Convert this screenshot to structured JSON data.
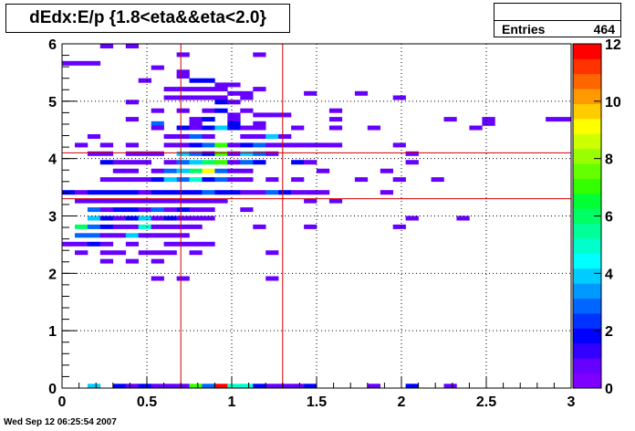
{
  "title": "dEdx:E/p {1.8<eta&&eta<2.0}",
  "stats": {
    "label": "Entries",
    "value": "464"
  },
  "footer": {
    "date": "Wed Sep 12 06:25:54 2007"
  },
  "colors": {
    "background": "#ffffff",
    "grid": "#000000",
    "cut_lines": "#d40000"
  },
  "chart_data": {
    "type": "heatmap",
    "title": "dEdx:E/p {1.8<eta&&eta<2.0}",
    "xlabel": "",
    "ylabel": "",
    "xlim": [
      0,
      3
    ],
    "ylim": [
      0,
      6
    ],
    "x_ticks": [
      "0",
      "0.5",
      "1",
      "1.5",
      "2",
      "2.5",
      "3"
    ],
    "y_ticks": [
      "0",
      "1",
      "2",
      "3",
      "4",
      "5",
      "6"
    ],
    "grid": true,
    "colorbar": {
      "range": [
        0,
        12
      ],
      "ticks": [
        "0",
        "2",
        "4",
        "6",
        "8",
        "10",
        "12"
      ],
      "colors": [
        "#7f00ff",
        "#6600ff",
        "#3300ff",
        "#0000ff",
        "#0033ff",
        "#0066ff",
        "#0099ff",
        "#00ccff",
        "#00ffff",
        "#00ffcc",
        "#00ff99",
        "#00ff66",
        "#00ff33",
        "#33ff00",
        "#66ff00",
        "#99ff00",
        "#ccff00",
        "#ffff00",
        "#ffcc00",
        "#ff9900",
        "#ff6600",
        "#ff3300",
        "#ff0000"
      ]
    },
    "bin_width": {
      "x": 0.075,
      "y": 0.075
    },
    "cut_lines": {
      "x": [
        0.7,
        1.3
      ],
      "y": [
        3.3,
        4.1
      ]
    },
    "cells": [
      [
        0.225,
        5.925,
        1
      ],
      [
        0.375,
        5.925,
        1
      ],
      [
        0.675,
        5.775,
        1
      ],
      [
        1.125,
        5.775,
        1
      ],
      [
        0.0,
        5.625,
        1
      ],
      [
        0.075,
        5.625,
        1
      ],
      [
        0.15,
        5.625,
        1
      ],
      [
        0.525,
        5.55,
        1
      ],
      [
        0.675,
        5.475,
        1
      ],
      [
        0.675,
        5.4,
        1
      ],
      [
        0.45,
        5.325,
        1
      ],
      [
        0.75,
        5.325,
        2
      ],
      [
        0.825,
        5.325,
        2
      ],
      [
        0.9,
        5.25,
        1
      ],
      [
        0.975,
        5.25,
        1
      ],
      [
        0.6,
        5.175,
        1
      ],
      [
        0.675,
        5.175,
        1
      ],
      [
        0.75,
        5.175,
        1
      ],
      [
        0.825,
        5.175,
        1
      ],
      [
        0.9,
        5.175,
        1
      ],
      [
        0.975,
        5.1,
        1
      ],
      [
        1.05,
        5.1,
        1
      ],
      [
        1.125,
        5.175,
        1
      ],
      [
        1.425,
        5.1,
        1
      ],
      [
        1.725,
        5.1,
        1
      ],
      [
        1.95,
        5.025,
        1
      ],
      [
        0.6,
        5.025,
        1
      ],
      [
        0.675,
        5.025,
        1
      ],
      [
        0.75,
        5.025,
        1
      ],
      [
        0.825,
        5.025,
        1
      ],
      [
        0.9,
        5.025,
        1
      ],
      [
        1.05,
        5.025,
        1
      ],
      [
        0.375,
        4.95,
        1
      ],
      [
        0.9,
        4.95,
        2
      ],
      [
        0.975,
        4.95,
        1
      ],
      [
        0.525,
        4.8,
        1
      ],
      [
        0.675,
        4.8,
        1
      ],
      [
        0.825,
        4.8,
        1
      ],
      [
        0.9,
        4.8,
        2
      ],
      [
        1.05,
        4.8,
        1
      ],
      [
        1.575,
        4.8,
        1
      ],
      [
        0.975,
        4.725,
        1
      ],
      [
        1.125,
        4.725,
        1
      ],
      [
        1.2,
        4.725,
        1
      ],
      [
        1.275,
        4.725,
        1
      ],
      [
        0.75,
        4.65,
        1
      ],
      [
        0.825,
        4.65,
        2
      ],
      [
        0.975,
        4.65,
        1
      ],
      [
        1.575,
        4.65,
        1
      ],
      [
        0.375,
        4.65,
        1
      ],
      [
        2.25,
        4.65,
        1
      ],
      [
        2.475,
        4.65,
        1
      ],
      [
        2.85,
        4.65,
        1
      ],
      [
        2.925,
        4.65,
        1
      ],
      [
        0.525,
        4.575,
        3
      ],
      [
        0.75,
        4.575,
        1
      ],
      [
        0.975,
        4.575,
        2
      ],
      [
        1.125,
        4.575,
        1
      ],
      [
        2.475,
        4.575,
        1
      ],
      [
        0.525,
        4.5,
        1
      ],
      [
        0.675,
        4.5,
        2
      ],
      [
        0.75,
        4.5,
        1
      ],
      [
        0.825,
        4.5,
        2
      ],
      [
        0.9,
        4.5,
        4
      ],
      [
        0.975,
        4.5,
        2
      ],
      [
        1.05,
        4.5,
        1
      ],
      [
        1.125,
        4.5,
        1
      ],
      [
        1.35,
        4.5,
        1
      ],
      [
        1.575,
        4.5,
        1
      ],
      [
        1.8,
        4.5,
        1
      ],
      [
        2.4,
        4.5,
        1
      ],
      [
        0.15,
        4.35,
        1
      ],
      [
        0.6,
        4.35,
        1
      ],
      [
        0.675,
        4.35,
        1
      ],
      [
        0.75,
        4.35,
        3
      ],
      [
        0.825,
        4.35,
        1
      ],
      [
        1.05,
        4.35,
        1
      ],
      [
        1.125,
        4.35,
        1
      ],
      [
        1.2,
        4.35,
        4
      ],
      [
        1.275,
        4.35,
        1
      ],
      [
        0.075,
        4.2,
        1
      ],
      [
        0.225,
        4.2,
        1
      ],
      [
        0.375,
        4.2,
        1
      ],
      [
        0.6,
        4.2,
        1
      ],
      [
        0.675,
        4.2,
        1
      ],
      [
        0.75,
        4.2,
        2
      ],
      [
        0.825,
        4.2,
        3
      ],
      [
        0.9,
        4.2,
        7
      ],
      [
        0.975,
        4.2,
        1
      ],
      [
        1.05,
        4.2,
        2
      ],
      [
        1.125,
        4.2,
        3
      ],
      [
        1.2,
        4.2,
        1
      ],
      [
        1.275,
        4.2,
        1
      ],
      [
        1.35,
        4.2,
        1
      ],
      [
        1.425,
        4.2,
        1
      ],
      [
        1.5,
        4.2,
        1
      ],
      [
        1.575,
        4.2,
        1
      ],
      [
        1.95,
        4.2,
        1
      ],
      [
        0.15,
        4.05,
        1
      ],
      [
        0.225,
        4.05,
        1
      ],
      [
        0.375,
        4.05,
        1
      ],
      [
        0.45,
        4.05,
        1
      ],
      [
        0.525,
        4.05,
        1
      ],
      [
        0.675,
        4.05,
        4
      ],
      [
        0.75,
        4.05,
        3
      ],
      [
        0.825,
        4.05,
        2
      ],
      [
        0.9,
        4.05,
        7
      ],
      [
        0.975,
        4.05,
        1
      ],
      [
        1.05,
        4.05,
        4
      ],
      [
        1.125,
        4.05,
        3
      ],
      [
        1.2,
        4.05,
        1
      ],
      [
        2.025,
        4.05,
        1
      ],
      [
        0.225,
        3.9,
        2
      ],
      [
        0.3,
        3.9,
        1
      ],
      [
        0.375,
        3.9,
        1
      ],
      [
        0.45,
        3.9,
        1
      ],
      [
        0.6,
        3.9,
        1
      ],
      [
        0.675,
        3.9,
        3
      ],
      [
        0.75,
        3.9,
        4
      ],
      [
        0.825,
        3.9,
        6
      ],
      [
        0.9,
        3.9,
        7
      ],
      [
        0.975,
        3.9,
        1
      ],
      [
        1.05,
        3.9,
        3
      ],
      [
        1.125,
        3.9,
        2
      ],
      [
        1.35,
        3.9,
        2
      ],
      [
        1.425,
        3.9,
        1
      ],
      [
        2.025,
        3.9,
        1
      ],
      [
        0.3,
        3.75,
        1
      ],
      [
        0.375,
        3.75,
        1
      ],
      [
        0.525,
        3.75,
        1
      ],
      [
        0.6,
        3.75,
        3
      ],
      [
        0.675,
        3.75,
        4
      ],
      [
        0.75,
        3.75,
        6
      ],
      [
        0.825,
        3.75,
        9
      ],
      [
        0.9,
        3.75,
        3
      ],
      [
        0.975,
        3.75,
        1
      ],
      [
        1.05,
        3.75,
        1
      ],
      [
        1.5,
        3.75,
        1
      ],
      [
        1.875,
        3.75,
        1
      ],
      [
        0.225,
        3.6,
        1
      ],
      [
        0.3,
        3.6,
        1
      ],
      [
        0.375,
        3.6,
        1
      ],
      [
        0.45,
        3.6,
        1
      ],
      [
        0.525,
        3.6,
        2
      ],
      [
        0.6,
        3.6,
        4
      ],
      [
        0.675,
        3.6,
        3
      ],
      [
        0.75,
        3.6,
        5
      ],
      [
        0.825,
        3.6,
        2
      ],
      [
        0.9,
        3.6,
        3
      ],
      [
        0.975,
        3.6,
        1
      ],
      [
        1.05,
        3.6,
        1
      ],
      [
        1.2,
        3.6,
        1
      ],
      [
        1.35,
        3.6,
        1
      ],
      [
        1.725,
        3.6,
        1
      ],
      [
        1.95,
        3.6,
        1
      ],
      [
        2.175,
        3.6,
        1
      ],
      [
        0.0,
        3.375,
        2
      ],
      [
        0.075,
        3.375,
        1
      ],
      [
        0.15,
        3.375,
        2
      ],
      [
        0.225,
        3.375,
        2
      ],
      [
        0.3,
        3.375,
        2
      ],
      [
        0.375,
        3.375,
        2
      ],
      [
        0.45,
        3.375,
        1
      ],
      [
        0.525,
        3.375,
        2
      ],
      [
        0.6,
        3.375,
        2
      ],
      [
        0.675,
        3.375,
        2
      ],
      [
        0.75,
        3.375,
        2
      ],
      [
        0.825,
        3.375,
        3
      ],
      [
        0.9,
        3.375,
        2
      ],
      [
        0.975,
        3.375,
        2
      ],
      [
        1.05,
        3.375,
        1
      ],
      [
        1.125,
        3.375,
        1
      ],
      [
        1.2,
        3.375,
        3
      ],
      [
        1.275,
        3.375,
        2
      ],
      [
        1.35,
        3.375,
        1
      ],
      [
        1.425,
        3.375,
        1
      ],
      [
        1.5,
        3.375,
        1
      ],
      [
        1.875,
        3.375,
        1
      ],
      [
        0.075,
        3.225,
        1
      ],
      [
        0.15,
        3.225,
        1
      ],
      [
        0.225,
        3.225,
        1
      ],
      [
        0.3,
        3.225,
        1
      ],
      [
        0.375,
        3.225,
        1
      ],
      [
        0.45,
        3.225,
        1
      ],
      [
        0.525,
        3.225,
        1
      ],
      [
        0.6,
        3.225,
        1
      ],
      [
        0.675,
        3.225,
        1
      ],
      [
        0.75,
        3.225,
        1
      ],
      [
        0.825,
        3.225,
        1
      ],
      [
        0.9,
        3.225,
        1
      ],
      [
        1.425,
        3.225,
        1
      ],
      [
        1.575,
        3.225,
        1
      ],
      [
        0.15,
        3.075,
        3
      ],
      [
        0.225,
        3.075,
        1
      ],
      [
        0.3,
        3.075,
        2
      ],
      [
        0.375,
        3.075,
        2
      ],
      [
        0.45,
        3.075,
        1
      ],
      [
        0.525,
        3.075,
        3
      ],
      [
        0.6,
        3.075,
        1
      ],
      [
        0.675,
        3.075,
        2
      ],
      [
        0.75,
        3.075,
        1
      ],
      [
        0.825,
        3.075,
        1
      ],
      [
        1.05,
        3.075,
        1
      ],
      [
        0.15,
        2.925,
        4
      ],
      [
        0.225,
        2.925,
        2
      ],
      [
        0.3,
        2.925,
        1
      ],
      [
        0.375,
        2.925,
        2
      ],
      [
        0.45,
        2.925,
        4
      ],
      [
        0.525,
        2.925,
        1
      ],
      [
        0.6,
        2.925,
        2
      ],
      [
        0.675,
        2.925,
        1
      ],
      [
        0.75,
        2.925,
        1
      ],
      [
        0.825,
        2.925,
        1
      ],
      [
        2.025,
        2.925,
        1
      ],
      [
        2.325,
        2.925,
        1
      ],
      [
        0.075,
        2.775,
        6
      ],
      [
        0.15,
        2.775,
        3
      ],
      [
        0.225,
        2.775,
        2
      ],
      [
        0.3,
        2.775,
        1
      ],
      [
        0.375,
        2.775,
        1
      ],
      [
        0.45,
        2.775,
        5
      ],
      [
        0.525,
        2.775,
        1
      ],
      [
        0.6,
        2.775,
        1
      ],
      [
        0.675,
        2.775,
        1
      ],
      [
        0.75,
        2.775,
        1
      ],
      [
        1.125,
        2.775,
        1
      ],
      [
        1.425,
        2.775,
        1
      ],
      [
        1.95,
        2.775,
        1
      ],
      [
        0.075,
        2.625,
        3
      ],
      [
        0.15,
        2.625,
        3
      ],
      [
        0.225,
        2.625,
        1
      ],
      [
        0.3,
        2.625,
        1
      ],
      [
        0.375,
        2.625,
        4
      ],
      [
        0.45,
        2.625,
        1
      ],
      [
        0.525,
        2.625,
        1
      ],
      [
        0.6,
        2.625,
        1
      ],
      [
        0.675,
        2.625,
        1
      ],
      [
        0.0,
        2.475,
        1
      ],
      [
        0.075,
        2.475,
        1
      ],
      [
        0.15,
        2.475,
        2
      ],
      [
        0.225,
        2.475,
        1
      ],
      [
        0.375,
        2.475,
        1
      ],
      [
        0.6,
        2.475,
        1
      ],
      [
        0.675,
        2.475,
        1
      ],
      [
        0.75,
        2.475,
        1
      ],
      [
        0.825,
        2.475,
        1
      ],
      [
        0.075,
        2.325,
        1
      ],
      [
        0.225,
        2.325,
        1
      ],
      [
        0.3,
        2.325,
        1
      ],
      [
        0.45,
        2.325,
        1
      ],
      [
        0.525,
        2.325,
        1
      ],
      [
        0.6,
        2.325,
        1
      ],
      [
        0.75,
        2.325,
        1
      ],
      [
        1.2,
        2.325,
        1
      ],
      [
        0.225,
        2.175,
        1
      ],
      [
        0.375,
        2.175,
        1
      ],
      [
        0.525,
        2.175,
        1
      ],
      [
        0.525,
        1.875,
        1
      ],
      [
        0.675,
        1.875,
        1
      ],
      [
        1.2,
        1.875,
        1
      ],
      [
        0.15,
        0.0,
        4
      ],
      [
        0.3,
        0.0,
        2
      ],
      [
        0.375,
        0.0,
        1
      ],
      [
        0.45,
        0.0,
        2
      ],
      [
        0.525,
        0.0,
        1
      ],
      [
        0.6,
        0.0,
        1
      ],
      [
        0.675,
        0.0,
        1
      ],
      [
        0.75,
        0.0,
        7
      ],
      [
        0.825,
        0.0,
        3
      ],
      [
        0.9,
        0.0,
        12
      ],
      [
        0.975,
        0.0,
        5
      ],
      [
        1.05,
        0.0,
        5
      ],
      [
        1.125,
        0.0,
        2
      ],
      [
        1.2,
        0.0,
        1
      ],
      [
        1.275,
        0.0,
        1
      ],
      [
        1.35,
        0.0,
        1
      ],
      [
        1.425,
        0.0,
        2
      ],
      [
        1.8,
        0.0,
        1
      ],
      [
        2.025,
        0.0,
        2
      ],
      [
        2.25,
        0.0,
        1
      ]
    ]
  }
}
